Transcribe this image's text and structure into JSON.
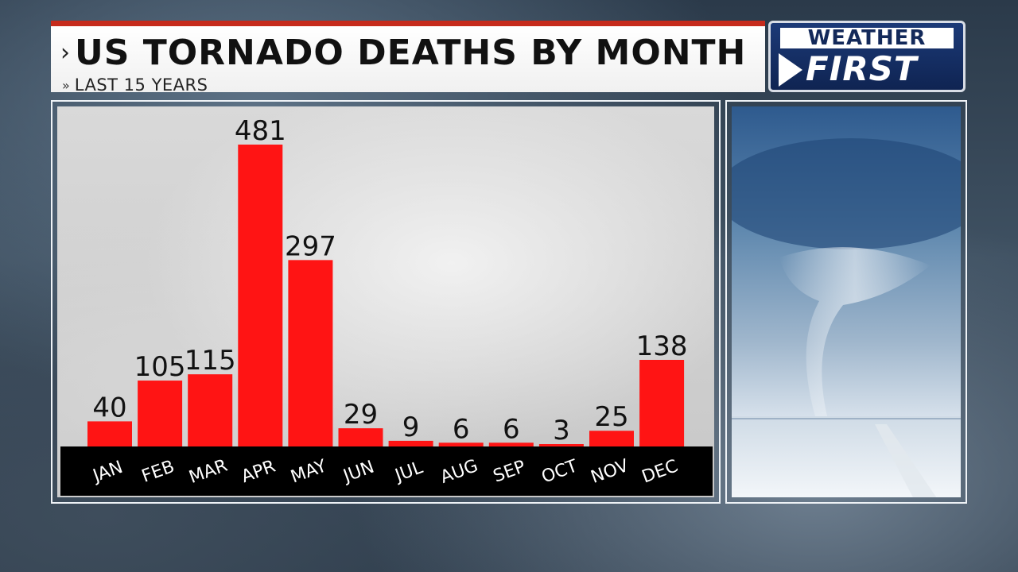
{
  "header": {
    "title": "US TORNADO DEATHS BY MONTH",
    "subtitle": "LAST 15 YEARS",
    "title_chevron": "›",
    "subtitle_chevron": "»"
  },
  "logo": {
    "line1": "WEATHER",
    "line2": "FIRST"
  },
  "photo": {
    "icon": "tornado-photo"
  },
  "colors": {
    "bar": "#ff1414",
    "label_band": "#000000",
    "accent_rule": "#c62b1c"
  },
  "chart_data": {
    "type": "bar",
    "title": "US TORNADO DEATHS BY MONTH",
    "subtitle": "LAST 15 YEARS",
    "categories": [
      "JAN",
      "FEB",
      "MAR",
      "APR",
      "MAY",
      "JUN",
      "JUL",
      "AUG",
      "SEP",
      "OCT",
      "NOV",
      "DEC"
    ],
    "values": [
      40,
      105,
      115,
      481,
      297,
      29,
      9,
      6,
      6,
      3,
      25,
      138
    ],
    "xlabel": "",
    "ylabel": "",
    "ylim": [
      0,
      481
    ],
    "grid": false,
    "data_labels": true
  }
}
